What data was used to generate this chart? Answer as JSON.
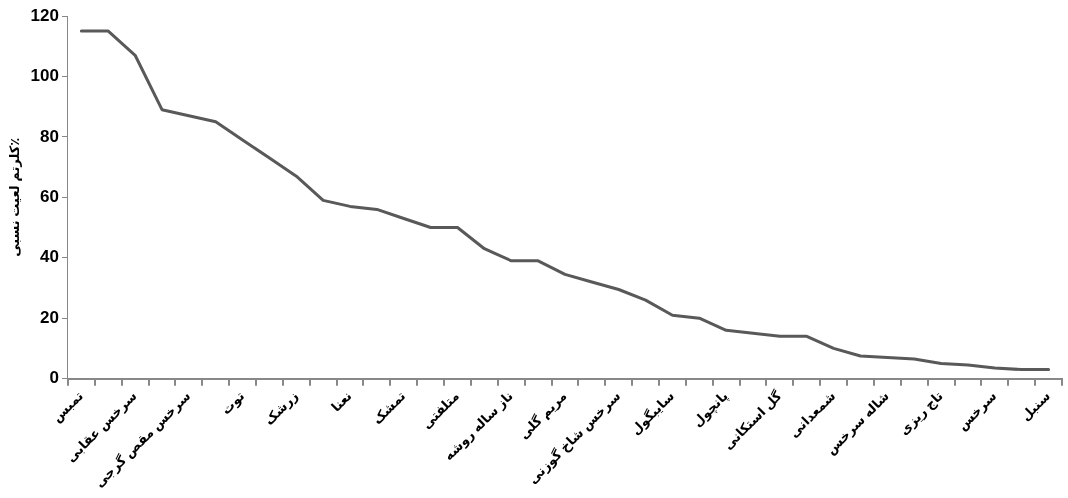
{
  "chart_data": {
    "type": "line",
    "ylabel": "کلرتم لعیت نسبی٪",
    "categories": [
      "تمبس",
      null,
      "سرخس عقابی",
      null,
      "سرخس مقص گرجی",
      null,
      "توت",
      null,
      "زرشک",
      null,
      "نعنا",
      null,
      "تمشک",
      null,
      "متلفتی",
      null,
      "ناز ساله روشه",
      null,
      "مریم گلی",
      null,
      "سرخس شاخ گوزنی",
      null,
      "سایبگول",
      null,
      "پانچول",
      null,
      "گل استکانی",
      null,
      "شمعدانی",
      null,
      "شاله سرخس",
      null,
      "تاج ریزی",
      null,
      "سرخس",
      null,
      "سنبل"
    ],
    "series": [
      {
        "color": "#595959",
        "values": [
          115,
          115,
          107,
          89,
          87,
          85,
          79,
          73,
          67,
          59,
          57,
          56,
          53,
          50,
          50,
          43,
          39,
          39,
          34.5,
          32,
          29.5,
          26,
          21,
          20,
          16,
          15,
          14,
          14,
          10,
          7.5,
          7,
          6.5,
          5,
          4.5,
          3.5,
          3,
          3
        ]
      }
    ],
    "ylim": [
      0,
      120
    ],
    "yticks": [
      0,
      20,
      40,
      60,
      80,
      100,
      120
    ],
    "grid": false,
    "legend": false,
    "marker": "none",
    "line_style": "solid"
  }
}
